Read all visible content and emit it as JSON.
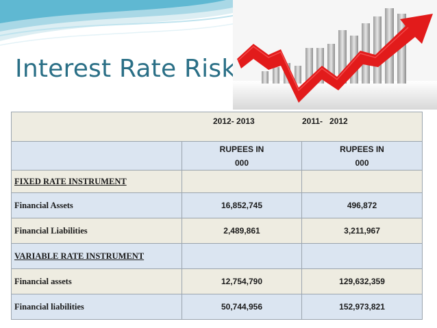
{
  "slide": {
    "title": "Interest Rate Risk"
  },
  "table": {
    "header": {
      "year1": "2012- 2013",
      "year2": "2011-   2012"
    },
    "units": {
      "col1": "RUPEES IN 000",
      "col2": "RUPEES IN 000"
    },
    "rows": [
      {
        "label": "FIXED RATE INSTRUMENT",
        "v1": "",
        "v2": "",
        "section": true
      },
      {
        "label": "Financial Assets",
        "v1": "16,852,745",
        "v2": "496,872",
        "section": false
      },
      {
        "label": "Financial Liabilities",
        "v1": "2,489,861",
        "v2": "3,211,967",
        "section": false
      },
      {
        "label": "VARIABLE RATE INSTRUMENT",
        "v1": "",
        "v2": "",
        "section": true
      },
      {
        "label": "Financial assets",
        "v1": "12,754,790",
        "v2": "129,632,359",
        "section": false
      },
      {
        "label": "Financial liabilities",
        "v1": "50,744,956",
        "v2": "152,973,821",
        "section": false
      }
    ]
  },
  "colors": {
    "title": "#2a6f86",
    "beige": "#eeece1",
    "blue": "#dbe5f1",
    "arrow": "#e21b1b"
  }
}
